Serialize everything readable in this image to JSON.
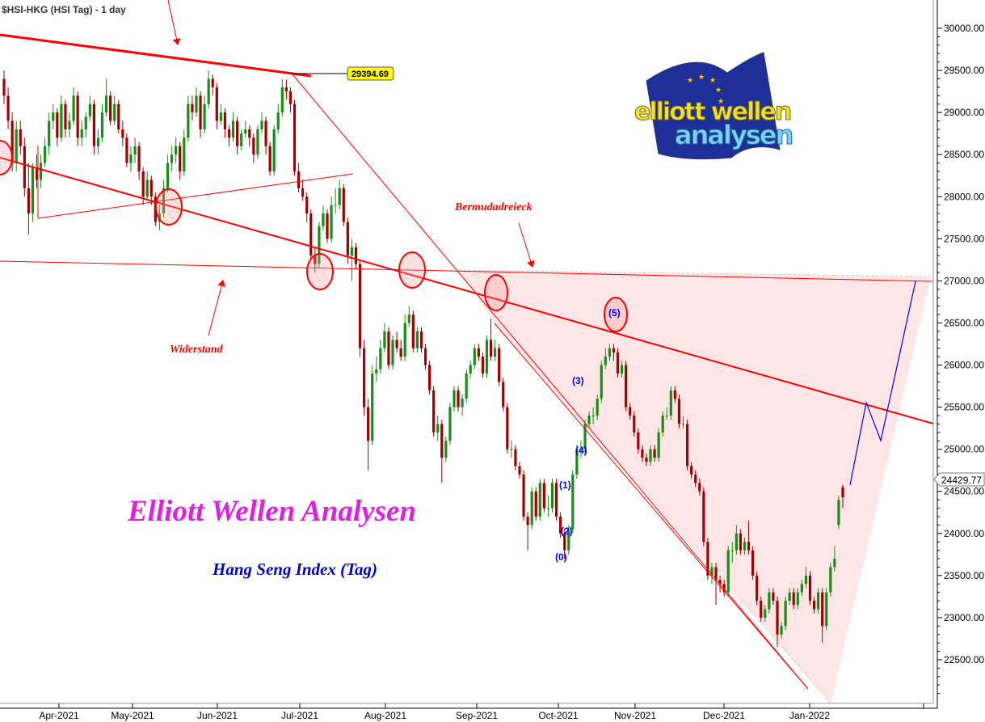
{
  "title": "$HSI-HKG (HSI Tag) - 1 day",
  "logo": {
    "line1": "elliott wellen",
    "line2": "analysen"
  },
  "annotations": {
    "brand": "Elliott Wellen Analysen",
    "subtitle": "Hang Seng Index (Tag)",
    "bermuda": "Bermudadreieck",
    "resistance": "Widerstand",
    "high_label": "29394.69",
    "waves": [
      "(0)",
      "(1)",
      "(2)",
      "(3)",
      "(4)",
      "(5)"
    ]
  },
  "colors": {
    "up": "#1a8c1a",
    "down": "#a00000",
    "trend": "#ff0000",
    "projection": "#0000ff",
    "brand": "#e020e0",
    "subtitle": "#0000cc",
    "zone": "#ffe4e4"
  },
  "chart_data": {
    "type": "candlestick",
    "title": "$HSI-HKG (HSI Tag) - 1 day",
    "ylim": [
      22100,
      30400
    ],
    "y_ticks": [
      22500,
      23000,
      23500,
      24000,
      24500,
      25000,
      25500,
      26000,
      26500,
      27000,
      27500,
      28000,
      28500,
      29000,
      29500,
      30000
    ],
    "y_tick_labels": [
      "22500.00",
      "23000.00",
      "23500.00",
      "24000.00",
      "24500.00",
      "25000.00",
      "25500.00",
      "26000.00",
      "26500.00",
      "27000.00",
      "27500.00",
      "28000.00",
      "28500.00",
      "29000.00",
      "29500.00",
      "30000.00"
    ],
    "x_tick_labels": [
      "Apr-2021",
      "May-2021",
      "Jun-2021",
      "Jul-2021",
      "Aug-2021",
      "Sep-2021",
      "Oct-2021",
      "Nov-2021",
      "Dec-2021",
      "Jan-2022"
    ],
    "last_price": "24429.77",
    "candles_ohlc": [
      [
        29400,
        29500,
        29100,
        29200
      ],
      [
        29200,
        29300,
        28800,
        28900
      ],
      [
        28900,
        29000,
        28300,
        28400
      ],
      [
        28400,
        28900,
        28300,
        28800
      ],
      [
        28800,
        28900,
        28500,
        28600
      ],
      [
        28600,
        28700,
        28000,
        28100
      ],
      [
        28100,
        28400,
        27550,
        27800
      ],
      [
        27800,
        28400,
        27700,
        28350
      ],
      [
        28350,
        28500,
        28100,
        28200
      ],
      [
        28200,
        28500,
        28100,
        28400
      ],
      [
        28400,
        28700,
        28350,
        28600
      ],
      [
        28600,
        29000,
        28500,
        28900
      ],
      [
        28900,
        29100,
        28800,
        29000
      ],
      [
        29000,
        29050,
        28600,
        28700
      ],
      [
        28700,
        29200,
        28650,
        29100
      ],
      [
        29100,
        29150,
        28700,
        28800
      ],
      [
        28800,
        29000,
        28700,
        28900
      ],
      [
        28900,
        29300,
        28850,
        29200
      ],
      [
        29200,
        29250,
        28600,
        28700
      ],
      [
        28700,
        28900,
        28600,
        28800
      ],
      [
        28800,
        29000,
        28700,
        28950
      ],
      [
        28950,
        29200,
        28900,
        29100
      ],
      [
        29100,
        29150,
        28500,
        28600
      ],
      [
        28600,
        28800,
        28500,
        28700
      ],
      [
        28700,
        29100,
        28650,
        29000
      ],
      [
        29000,
        29400,
        28950,
        29200
      ],
      [
        29200,
        29250,
        28850,
        28900
      ],
      [
        28900,
        29200,
        28850,
        29100
      ],
      [
        29100,
        29150,
        28750,
        28800
      ],
      [
        28800,
        28900,
        28600,
        28700
      ],
      [
        28700,
        28750,
        28350,
        28400
      ],
      [
        28400,
        28600,
        28300,
        28500
      ],
      [
        28500,
        28700,
        28400,
        28600
      ],
      [
        28600,
        28650,
        28200,
        28300
      ],
      [
        28300,
        28350,
        27900,
        28000
      ],
      [
        28000,
        28300,
        27950,
        28200
      ],
      [
        28200,
        28250,
        27900,
        28000
      ],
      [
        28000,
        28050,
        27650,
        27700
      ],
      [
        27700,
        27900,
        27600,
        27800
      ],
      [
        27800,
        28200,
        27750,
        28100
      ],
      [
        28100,
        28500,
        28050,
        28400
      ],
      [
        28400,
        28600,
        28300,
        28500
      ],
      [
        28500,
        28700,
        28400,
        28600
      ],
      [
        28600,
        28650,
        28200,
        28300
      ],
      [
        28300,
        28800,
        28250,
        28700
      ],
      [
        28700,
        29200,
        28650,
        29100
      ],
      [
        29100,
        29200,
        28900,
        29000
      ],
      [
        29000,
        29300,
        28950,
        29200
      ],
      [
        29200,
        29250,
        28700,
        28800
      ],
      [
        28800,
        29200,
        28750,
        29100
      ],
      [
        29100,
        29500,
        29050,
        29400
      ],
      [
        29400,
        29450,
        29200,
        29300
      ],
      [
        29300,
        29350,
        28800,
        28900
      ],
      [
        28900,
        29100,
        28850,
        29000
      ],
      [
        29000,
        29050,
        28700,
        28800
      ],
      [
        28800,
        28850,
        28600,
        28700
      ],
      [
        28700,
        29000,
        28650,
        28900
      ],
      [
        28900,
        28950,
        28500,
        28600
      ],
      [
        28600,
        28800,
        28550,
        28750
      ],
      [
        28750,
        28900,
        28700,
        28800
      ],
      [
        28800,
        28850,
        28600,
        28700
      ],
      [
        28700,
        28750,
        28400,
        28500
      ],
      [
        28500,
        28850,
        28450,
        28800
      ],
      [
        28800,
        29000,
        28750,
        28900
      ],
      [
        28900,
        28950,
        28500,
        28600
      ],
      [
        28600,
        28650,
        28250,
        28300
      ],
      [
        28300,
        28850,
        28250,
        28800
      ],
      [
        28800,
        29100,
        28750,
        29000
      ],
      [
        29000,
        29394,
        28950,
        29300
      ],
      [
        29300,
        29390,
        29150,
        29250
      ],
      [
        29250,
        29300,
        29000,
        29100
      ],
      [
        29100,
        29150,
        28250,
        28300
      ],
      [
        28300,
        28400,
        28050,
        28100
      ],
      [
        28100,
        28200,
        27950,
        28000
      ],
      [
        28000,
        28050,
        27700,
        27800
      ],
      [
        27800,
        27850,
        27250,
        27300
      ],
      [
        27300,
        27400,
        27100,
        27200
      ],
      [
        27200,
        27700,
        27150,
        27650
      ],
      [
        27650,
        27900,
        27600,
        27800
      ],
      [
        27800,
        27850,
        27450,
        27500
      ],
      [
        27500,
        28000,
        27450,
        27900
      ],
      [
        27900,
        28100,
        27800,
        27900
      ],
      [
        27900,
        28200,
        27850,
        28100
      ],
      [
        28100,
        28150,
        27650,
        27700
      ],
      [
        27700,
        27750,
        27200,
        27300
      ],
      [
        27300,
        27500,
        27000,
        27400
      ],
      [
        27400,
        27450,
        27150,
        27200
      ],
      [
        27200,
        27250,
        26100,
        26200
      ],
      [
        26200,
        26300,
        25400,
        25500
      ],
      [
        25500,
        25600,
        24750,
        25100
      ],
      [
        25100,
        26000,
        25050,
        25900
      ],
      [
        25900,
        26100,
        25800,
        25950
      ],
      [
        25950,
        26300,
        25900,
        26200
      ],
      [
        26200,
        26500,
        26150,
        26400
      ],
      [
        26400,
        26450,
        25950,
        26000
      ],
      [
        26000,
        26350,
        25950,
        26300
      ],
      [
        26300,
        26400,
        26150,
        26200
      ],
      [
        26200,
        26300,
        26050,
        26100
      ],
      [
        26100,
        26600,
        26050,
        26500
      ],
      [
        26500,
        26700,
        26450,
        26600
      ],
      [
        26600,
        26650,
        26150,
        26200
      ],
      [
        26200,
        26450,
        26150,
        26400
      ],
      [
        26400,
        26450,
        26150,
        26200
      ],
      [
        26200,
        26250,
        25950,
        26000
      ],
      [
        26000,
        26050,
        25650,
        25700
      ],
      [
        25700,
        25750,
        25150,
        25200
      ],
      [
        25200,
        25400,
        25100,
        25300
      ],
      [
        25300,
        25350,
        24600,
        24900
      ],
      [
        24900,
        25150,
        24850,
        25100
      ],
      [
        25100,
        25550,
        25050,
        25500
      ],
      [
        25500,
        25750,
        25450,
        25700
      ],
      [
        25700,
        25750,
        25450,
        25500
      ],
      [
        25500,
        25650,
        25400,
        25600
      ],
      [
        25600,
        25950,
        25550,
        25900
      ],
      [
        25900,
        26050,
        25850,
        26000
      ],
      [
        26000,
        26250,
        25950,
        26200
      ],
      [
        26200,
        26250,
        26050,
        26100
      ],
      [
        26100,
        26150,
        25850,
        25900
      ],
      [
        25900,
        26350,
        25850,
        26300
      ],
      [
        26300,
        26550,
        26050,
        26100
      ],
      [
        26100,
        26300,
        26050,
        26200
      ],
      [
        26200,
        26250,
        25750,
        25800
      ],
      [
        25800,
        25850,
        25450,
        25500
      ],
      [
        25500,
        25550,
        24950,
        25000
      ],
      [
        25000,
        25100,
        24900,
        25000
      ],
      [
        25000,
        25050,
        24750,
        24800
      ],
      [
        24800,
        24850,
        24650,
        24700
      ],
      [
        24700,
        24750,
        24150,
        24200
      ],
      [
        24200,
        24250,
        23800,
        24100
      ],
      [
        24100,
        24550,
        24050,
        24500
      ],
      [
        24500,
        24550,
        24150,
        24200
      ],
      [
        24200,
        24650,
        24150,
        24600
      ],
      [
        24600,
        24650,
        24250,
        24300
      ],
      [
        24300,
        24450,
        24200,
        24300
      ],
      [
        24300,
        24650,
        24250,
        24600
      ],
      [
        24600,
        24650,
        24150,
        24200
      ],
      [
        24200,
        24250,
        23950,
        24000
      ],
      [
        24000,
        24050,
        23700,
        23800
      ],
      [
        23800,
        24100,
        23750,
        24050
      ],
      [
        24050,
        24750,
        24000,
        24700
      ],
      [
        24700,
        25050,
        24650,
        25000
      ],
      [
        25000,
        25100,
        24900,
        25000
      ],
      [
        25000,
        25350,
        24950,
        25300
      ],
      [
        25300,
        25450,
        25250,
        25400
      ],
      [
        25400,
        25500,
        25300,
        25400
      ],
      [
        25400,
        25650,
        25350,
        25600
      ],
      [
        25600,
        26050,
        25550,
        26000
      ],
      [
        26000,
        26200,
        25950,
        26100
      ],
      [
        26100,
        26250,
        26050,
        26200
      ],
      [
        26200,
        26250,
        26050,
        26150
      ],
      [
        26150,
        26200,
        25850,
        25900
      ],
      [
        25900,
        26050,
        25850,
        26000
      ],
      [
        26000,
        26050,
        25450,
        25500
      ],
      [
        25500,
        25550,
        25350,
        25400
      ],
      [
        25400,
        25450,
        25150,
        25200
      ],
      [
        25200,
        25250,
        24950,
        25000
      ],
      [
        25000,
        25050,
        24850,
        24900
      ],
      [
        24900,
        24950,
        24800,
        24850
      ],
      [
        24850,
        25050,
        24800,
        25000
      ],
      [
        25000,
        25050,
        24850,
        24900
      ],
      [
        24900,
        25250,
        24850,
        25200
      ],
      [
        25200,
        25450,
        25150,
        25400
      ],
      [
        25400,
        25500,
        25350,
        25400
      ],
      [
        25400,
        25750,
        25350,
        25700
      ],
      [
        25700,
        25750,
        25550,
        25600
      ],
      [
        25600,
        25650,
        25250,
        25300
      ],
      [
        25300,
        25400,
        25250,
        25300
      ],
      [
        25300,
        25350,
        24750,
        24800
      ],
      [
        24800,
        24850,
        24650,
        24700
      ],
      [
        24700,
        24750,
        24550,
        24600
      ],
      [
        24600,
        24650,
        24450,
        24500
      ],
      [
        24500,
        24550,
        23850,
        23900
      ],
      [
        23900,
        23950,
        23450,
        23500
      ],
      [
        23500,
        23650,
        23400,
        23600
      ],
      [
        23600,
        23650,
        23150,
        23450
      ],
      [
        23450,
        23500,
        23300,
        23400
      ],
      [
        23400,
        23450,
        23250,
        23300
      ],
      [
        23300,
        23850,
        23250,
        23800
      ],
      [
        23800,
        23900,
        23650,
        23800
      ],
      [
        23800,
        24100,
        23750,
        24000
      ],
      [
        24000,
        24050,
        23750,
        23800
      ],
      [
        23800,
        23950,
        23750,
        23900
      ],
      [
        23900,
        24150,
        23750,
        23800
      ],
      [
        23800,
        23850,
        23450,
        23500
      ],
      [
        23500,
        23550,
        23150,
        23200
      ],
      [
        23200,
        23250,
        22950,
        23000
      ],
      [
        23000,
        23150,
        22950,
        23100
      ],
      [
        23100,
        23350,
        23050,
        23300
      ],
      [
        23300,
        23350,
        23150,
        23200
      ],
      [
        23200,
        23250,
        22650,
        22800
      ],
      [
        22800,
        22950,
        22750,
        22900
      ],
      [
        22900,
        23250,
        22850,
        23200
      ],
      [
        23200,
        23350,
        23150,
        23300
      ],
      [
        23300,
        23350,
        23100,
        23150
      ],
      [
        23150,
        23350,
        23100,
        23300
      ],
      [
        23300,
        23450,
        23250,
        23400
      ],
      [
        23400,
        23600,
        23350,
        23500
      ],
      [
        23500,
        23550,
        23150,
        23200
      ],
      [
        23200,
        23250,
        23050,
        23100
      ],
      [
        23100,
        23350,
        23050,
        23300
      ],
      [
        23300,
        23350,
        22700,
        22900
      ],
      [
        22900,
        23350,
        22850,
        23300
      ],
      [
        23300,
        23650,
        23250,
        23600
      ],
      [
        23600,
        23850,
        23550,
        23700
      ],
      [
        24100,
        24450,
        24050,
        24400
      ],
      [
        24550,
        24580,
        24300,
        24430
      ]
    ]
  }
}
